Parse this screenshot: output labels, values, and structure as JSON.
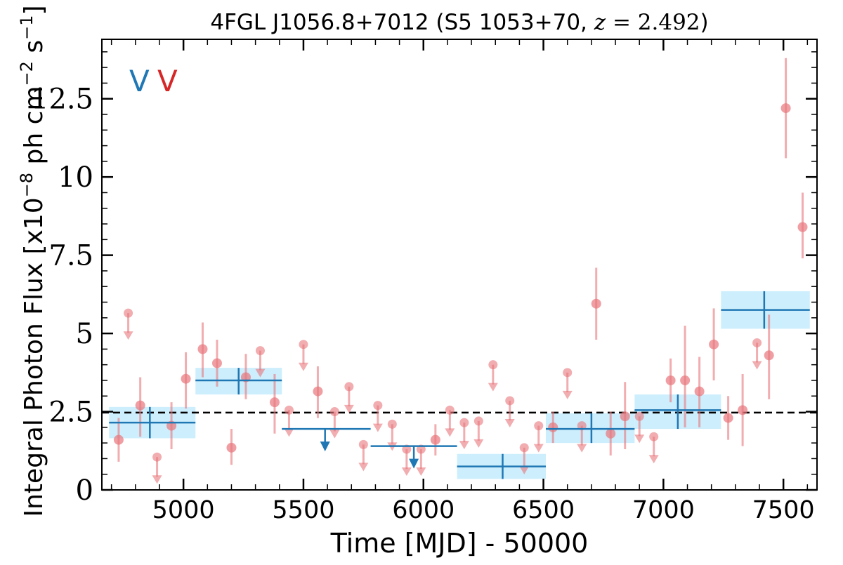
{
  "chart_data": {
    "type": "scatter",
    "title": "4FGL J1056.8+7012 (S5 1053+70, z = 2.492)",
    "xlabel": "Time [MJD] - 50000",
    "ylabel": "Integral Photon Flux [x10⁻⁸ ph cm⁻² s⁻¹]",
    "xlim": [
      4660,
      7640
    ],
    "ylim": [
      0,
      14.4
    ],
    "x_ticks": [
      5000,
      5500,
      6000,
      6500,
      7000,
      7500
    ],
    "x_tick_labels": [
      "5000",
      "5500",
      "6000",
      "6500",
      "7000",
      "7500"
    ],
    "y_ticks": [
      0,
      2.5,
      5,
      7.5,
      10,
      12.5
    ],
    "y_tick_labels": [
      "0",
      "2.5",
      "5",
      "7.5",
      "10",
      "12.5"
    ],
    "grid": false,
    "reference_line": {
      "y": 2.47,
      "style": "dashed"
    },
    "legend_markers": [
      {
        "label": "V",
        "color": "#1f77b4"
      },
      {
        "label": "V",
        "color": "#d62728"
      }
    ],
    "colors": {
      "short_bins": "#e8767c",
      "long_bins": "#1f77b4",
      "long_bin_band": "#cdeefc"
    },
    "series": [
      {
        "kind": "short-bins",
        "detections": [
          {
            "x": 4730,
            "y": 1.6,
            "ylo": 0.9,
            "yhi": 2.3
          },
          {
            "x": 4820,
            "y": 2.7,
            "ylo": 1.7,
            "yhi": 3.6
          },
          {
            "x": 4950,
            "y": 2.05,
            "ylo": 1.3,
            "yhi": 2.8
          },
          {
            "x": 5010,
            "y": 3.55,
            "ylo": 2.6,
            "yhi": 4.4
          },
          {
            "x": 5080,
            "y": 4.5,
            "ylo": 3.6,
            "yhi": 5.35
          },
          {
            "x": 5140,
            "y": 4.05,
            "ylo": 3.3,
            "yhi": 4.8
          },
          {
            "x": 5200,
            "y": 1.35,
            "ylo": 0.8,
            "yhi": 1.95
          },
          {
            "x": 5260,
            "y": 3.6,
            "ylo": 2.9,
            "yhi": 4.35
          },
          {
            "x": 5380,
            "y": 2.8,
            "ylo": 1.8,
            "yhi": 3.7
          },
          {
            "x": 5560,
            "y": 3.15,
            "ylo": 2.3,
            "yhi": 3.95
          },
          {
            "x": 6050,
            "y": 1.6,
            "ylo": 1.1,
            "yhi": 2.1
          },
          {
            "x": 6540,
            "y": 2.0,
            "ylo": 1.5,
            "yhi": 2.5
          },
          {
            "x": 6720,
            "y": 5.95,
            "ylo": 4.8,
            "yhi": 7.1
          },
          {
            "x": 6780,
            "y": 1.8,
            "ylo": 1.1,
            "yhi": 2.5
          },
          {
            "x": 6840,
            "y": 2.35,
            "ylo": 1.3,
            "yhi": 3.45
          },
          {
            "x": 7030,
            "y": 3.5,
            "ylo": 2.8,
            "yhi": 4.2
          },
          {
            "x": 7090,
            "y": 3.5,
            "ylo": 2.0,
            "yhi": 5.25
          },
          {
            "x": 7150,
            "y": 3.15,
            "ylo": 2.0,
            "yhi": 4.25
          },
          {
            "x": 7210,
            "y": 4.65,
            "ylo": 3.5,
            "yhi": 5.8
          },
          {
            "x": 7270,
            "y": 2.3,
            "ylo": 1.6,
            "yhi": 3.0
          },
          {
            "x": 7330,
            "y": 2.55,
            "ylo": 1.4,
            "yhi": 3.7
          },
          {
            "x": 7440,
            "y": 4.3,
            "ylo": 2.9,
            "yhi": 5.6
          },
          {
            "x": 7510,
            "y": 12.2,
            "ylo": 10.6,
            "yhi": 13.8
          },
          {
            "x": 7580,
            "y": 8.4,
            "ylo": 7.4,
            "yhi": 9.5
          }
        ],
        "upper_limits": [
          {
            "x": 4770,
            "y": 5.65
          },
          {
            "x": 4890,
            "y": 1.05
          },
          {
            "x": 5320,
            "y": 4.45
          },
          {
            "x": 5440,
            "y": 2.55
          },
          {
            "x": 5500,
            "y": 4.65
          },
          {
            "x": 5630,
            "y": 2.5
          },
          {
            "x": 5690,
            "y": 3.3
          },
          {
            "x": 5750,
            "y": 1.45
          },
          {
            "x": 5810,
            "y": 2.7
          },
          {
            "x": 5870,
            "y": 2.1
          },
          {
            "x": 5930,
            "y": 1.3
          },
          {
            "x": 5990,
            "y": 1.3
          },
          {
            "x": 6110,
            "y": 2.55
          },
          {
            "x": 6170,
            "y": 2.15
          },
          {
            "x": 6230,
            "y": 2.2
          },
          {
            "x": 6290,
            "y": 4.0
          },
          {
            "x": 6360,
            "y": 2.85
          },
          {
            "x": 6420,
            "y": 1.35
          },
          {
            "x": 6480,
            "y": 2.05
          },
          {
            "x": 6600,
            "y": 3.75
          },
          {
            "x": 6660,
            "y": 2.05
          },
          {
            "x": 6900,
            "y": 2.35
          },
          {
            "x": 6960,
            "y": 1.7
          },
          {
            "x": 7390,
            "y": 4.7
          }
        ]
      },
      {
        "kind": "long-bins",
        "detections": [
          {
            "x0": 4690,
            "x1": 5050,
            "xc": 4860,
            "y": 2.15,
            "ylo": 1.65,
            "yhi": 2.65
          },
          {
            "x0": 5050,
            "x1": 5410,
            "xc": 5230,
            "y": 3.5,
            "ylo": 3.05,
            "yhi": 3.9
          },
          {
            "x0": 6140,
            "x1": 6510,
            "xc": 6330,
            "y": 0.75,
            "ylo": 0.35,
            "yhi": 1.15
          },
          {
            "x0": 6510,
            "x1": 6880,
            "xc": 6700,
            "y": 1.95,
            "ylo": 1.5,
            "yhi": 2.45
          },
          {
            "x0": 6880,
            "x1": 7240,
            "xc": 7060,
            "y": 2.55,
            "ylo": 1.95,
            "yhi": 3.05
          },
          {
            "x0": 7240,
            "x1": 7610,
            "xc": 7420,
            "y": 5.75,
            "ylo": 5.15,
            "yhi": 6.35
          }
        ],
        "upper_limits": [
          {
            "x0": 5410,
            "x1": 5780,
            "xc": 5590,
            "y": 1.95
          },
          {
            "x0": 5780,
            "x1": 6140,
            "xc": 5960,
            "y": 1.4
          }
        ]
      }
    ]
  }
}
